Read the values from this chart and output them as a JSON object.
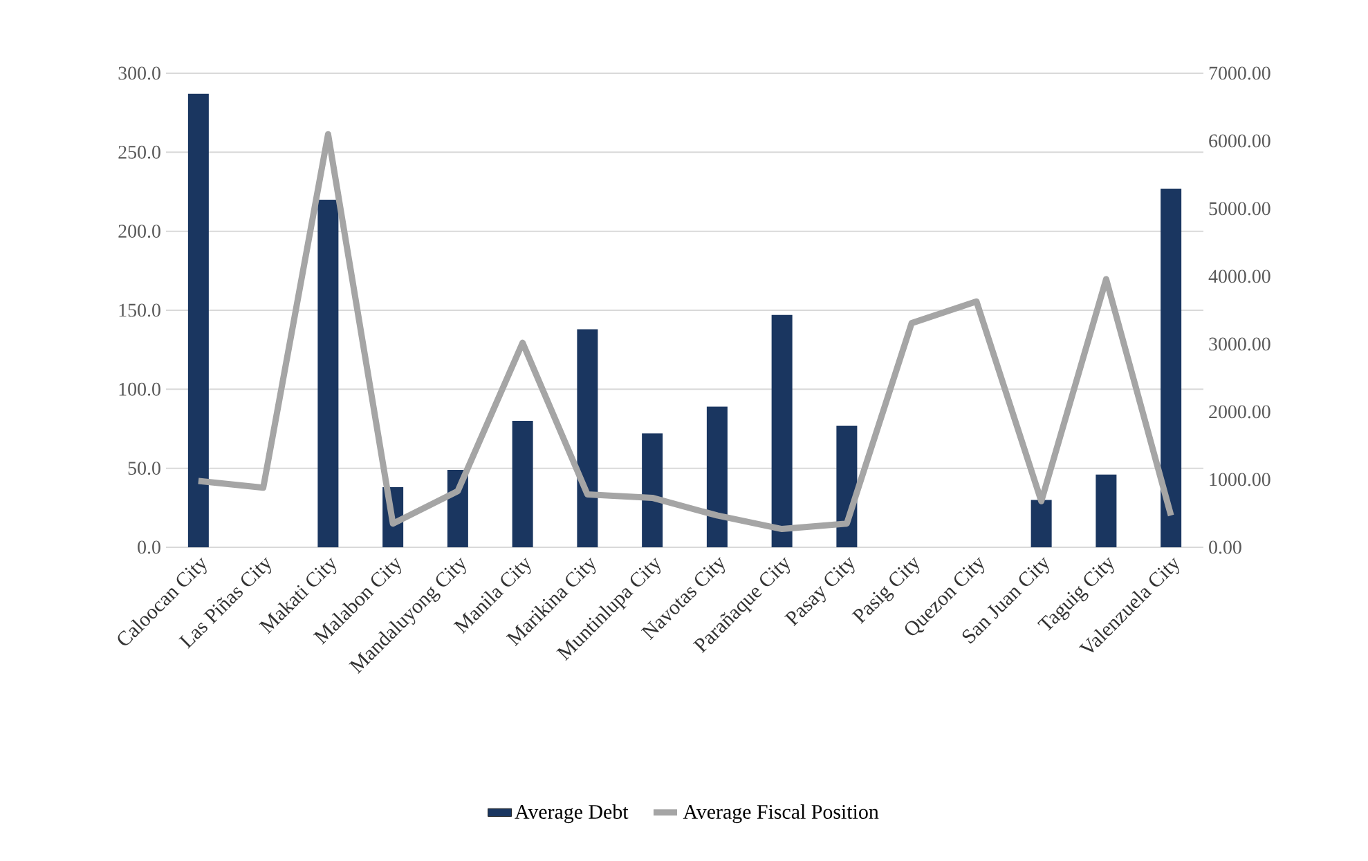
{
  "chart_data": {
    "type": "bar",
    "categories": [
      "Caloocan City",
      "Las Piñas City",
      "Makati City",
      "Malabon City",
      "Mandaluyong City",
      "Manila City",
      "Marikina City",
      "Muntinlupa City",
      "Navotas City",
      "Parañaque City",
      "Pasay City",
      "Pasig City",
      "Quezon City",
      "San Juan City",
      "Taguig City",
      "Valenzuela City"
    ],
    "series": [
      {
        "name": "Average Debt",
        "color": "#1a3660",
        "values": [
          287,
          null,
          220,
          38,
          49,
          80,
          138,
          72,
          89,
          147,
          77,
          null,
          null,
          30,
          46,
          227
        ]
      },
      {
        "name": "Average Fiscal Position",
        "type": "line",
        "axis": "y2",
        "color": "#a5a5a5",
        "values": [
          980,
          880,
          6100,
          350,
          830,
          3020,
          780,
          730,
          470,
          270,
          350,
          3310,
          3630,
          680,
          3960,
          470
        ]
      }
    ],
    "ylim": [
      0,
      300
    ],
    "yticks": [
      {
        "value": 0,
        "label": "0.0"
      },
      {
        "value": 50,
        "label": "50.0"
      },
      {
        "value": 100,
        "label": "100.0"
      },
      {
        "value": 150,
        "label": "150.0"
      },
      {
        "value": 200,
        "label": "200.0"
      },
      {
        "value": 250,
        "label": "250.0"
      },
      {
        "value": 300,
        "label": "300.0"
      }
    ],
    "y2lim": [
      0,
      7000
    ],
    "y2ticks": [
      {
        "value": 0,
        "label": "0.00"
      },
      {
        "value": 1000,
        "label": "1000.00"
      },
      {
        "value": 2000,
        "label": "2000.00"
      },
      {
        "value": 3000,
        "label": "3000.00"
      },
      {
        "value": 4000,
        "label": "4000.00"
      },
      {
        "value": 5000,
        "label": "5000.00"
      },
      {
        "value": 6000,
        "label": "6000.00"
      },
      {
        "value": 7000,
        "label": "7000.00"
      }
    ],
    "grid": "y",
    "legend": "bottom"
  }
}
